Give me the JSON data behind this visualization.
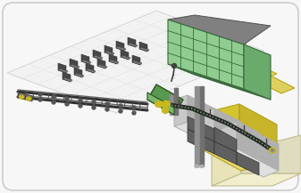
{
  "bg": "#f7f7f7",
  "border": "#cccccc",
  "colors": {
    "floor": "#f0f0f0",
    "floor_edge": "#d0d0d0",
    "building_yellow_top": "#e8d870",
    "building_yellow_face": "#d4c430",
    "building_light_top": "#f0eecc",
    "building_light_face": "#e8e4b8",
    "wall_gray": "#c8c8c8",
    "wall_dark": "#a8a8a8",
    "step_top": "#e0e0e0",
    "step_face": "#c8c8c8",
    "step_side": "#b0b0b0",
    "panel_dark": "#606060",
    "panel_top": "#707070",
    "pipe_gray": "#909090",
    "pipe_dark": "#606060",
    "conveyor_dark": "#303030",
    "conveyor_mid": "#505050",
    "machine_green": "#5a9850",
    "machine_dark_green": "#2a5020",
    "machine_yellow": "#c8b820",
    "machine_accent": "#7ab870",
    "arm_dark": "#282828",
    "arm_green": "#80c080",
    "pallet_dark": "#484848",
    "pallet_mid": "#606060",
    "pallet_top": "#787878",
    "rack_green": "#90cc90",
    "rack_mid": "#70aa70",
    "rack_dark": "#3a6a3a",
    "rack_side": "#6aaa6a",
    "rack_base": "#888888",
    "yellow_block": "#ddd060",
    "yellow_block2": "#c8bc30"
  }
}
